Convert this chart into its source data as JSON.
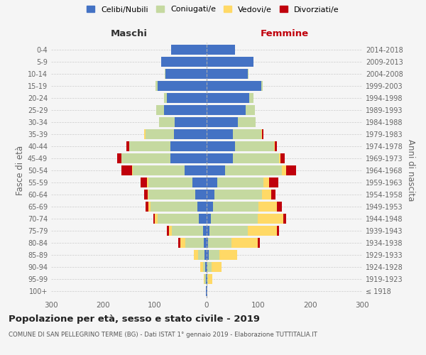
{
  "age_groups": [
    "100+",
    "95-99",
    "90-94",
    "85-89",
    "80-84",
    "75-79",
    "70-74",
    "65-69",
    "60-64",
    "55-59",
    "50-54",
    "45-49",
    "40-44",
    "35-39",
    "30-34",
    "25-29",
    "20-24",
    "15-19",
    "10-14",
    "5-9",
    "0-4"
  ],
  "birth_years": [
    "≤ 1918",
    "1919-1923",
    "1924-1928",
    "1929-1933",
    "1934-1938",
    "1939-1943",
    "1944-1948",
    "1949-1953",
    "1954-1958",
    "1959-1963",
    "1964-1968",
    "1969-1973",
    "1974-1978",
    "1979-1983",
    "1984-1988",
    "1989-1993",
    "1994-1998",
    "1999-2003",
    "2004-2008",
    "2009-2013",
    "2014-2018"
  ],
  "maschi": {
    "celibi": [
      1,
      2,
      3,
      4,
      6,
      7,
      15,
      18,
      22,
      28,
      42,
      70,
      70,
      63,
      62,
      82,
      77,
      95,
      80,
      87,
      68
    ],
    "coniugati": [
      0,
      2,
      4,
      12,
      35,
      60,
      80,
      90,
      90,
      85,
      100,
      95,
      80,
      55,
      30,
      15,
      5,
      3,
      1,
      1,
      0
    ],
    "vedovi": [
      0,
      2,
      5,
      8,
      10,
      5,
      5,
      5,
      2,
      2,
      2,
      0,
      0,
      2,
      0,
      0,
      0,
      0,
      0,
      0,
      0
    ],
    "divorziati": [
      0,
      0,
      0,
      0,
      4,
      5,
      3,
      5,
      7,
      12,
      20,
      8,
      5,
      0,
      0,
      0,
      0,
      0,
      0,
      0,
      0
    ]
  },
  "femmine": {
    "nubili": [
      1,
      1,
      2,
      4,
      3,
      5,
      8,
      12,
      15,
      20,
      35,
      50,
      55,
      50,
      60,
      75,
      82,
      105,
      80,
      90,
      55
    ],
    "coniugate": [
      0,
      2,
      7,
      20,
      45,
      75,
      90,
      88,
      92,
      90,
      110,
      90,
      75,
      55,
      35,
      18,
      8,
      3,
      1,
      0,
      0
    ],
    "vedove": [
      1,
      8,
      20,
      35,
      50,
      55,
      50,
      35,
      18,
      10,
      8,
      3,
      2,
      2,
      0,
      0,
      0,
      0,
      0,
      0,
      0
    ],
    "divorziate": [
      0,
      0,
      0,
      0,
      5,
      5,
      5,
      10,
      8,
      18,
      20,
      8,
      3,
      2,
      0,
      0,
      0,
      0,
      0,
      0,
      0
    ]
  },
  "colors": {
    "celibi_nubili": "#4472C4",
    "coniugati": "#C5D9A0",
    "vedovi": "#FFD966",
    "divorziati": "#C0000C"
  },
  "title": "Popolazione per età, sesso e stato civile - 2019",
  "subtitle": "COMUNE DI SAN PELLEGRINO TERME (BG) - Dati ISTAT 1° gennaio 2019 - Elaborazione TUTTITALIA.IT",
  "ylabel_left": "Fasce di età",
  "ylabel_right": "Anni di nascita",
  "xlabel_left": "Maschi",
  "xlabel_right": "Femmine",
  "xlim": 300,
  "bg_color": "#f5f5f5",
  "legend_labels": [
    "Celibi/Nubili",
    "Coniugati/e",
    "Vedovi/e",
    "Divorziati/e"
  ]
}
